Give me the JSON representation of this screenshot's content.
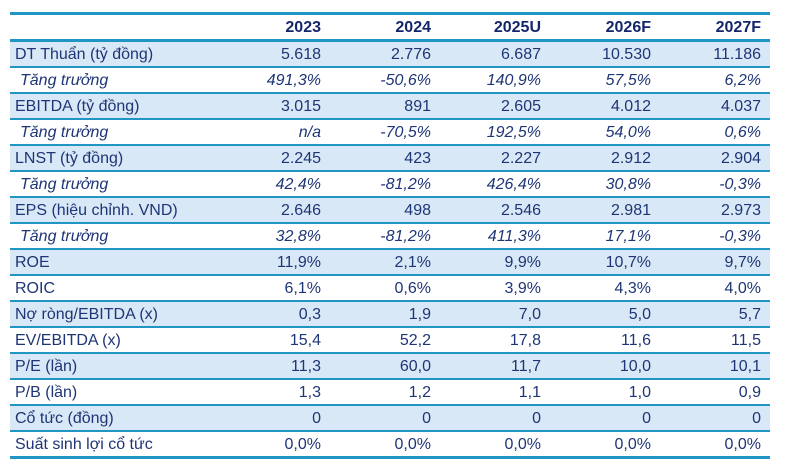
{
  "colors": {
    "rule_teal": "#2196c4",
    "row_shade_blue": "#d9e8f6",
    "text_navy": "#1e3576",
    "header_navy": "#14266b"
  },
  "chart_data": {
    "type": "table",
    "title": "",
    "corner_label": "",
    "columns": [
      "2023",
      "2024",
      "2025U",
      "2026F",
      "2027F"
    ],
    "rows": [
      {
        "label": "DT Thuẩn (tỷ đồng)",
        "italic": false,
        "values": [
          "5.618",
          "2.776",
          "6.687",
          "10.530",
          "11.186"
        ]
      },
      {
        "label": "Tăng trưởng",
        "italic": true,
        "values": [
          "491,3%",
          "-50,6%",
          "140,9%",
          "57,5%",
          "6,2%"
        ]
      },
      {
        "label": "EBITDA (tỷ đồng)",
        "italic": false,
        "values": [
          "3.015",
          "891",
          "2.605",
          "4.012",
          "4.037"
        ]
      },
      {
        "label": "Tăng trưởng",
        "italic": true,
        "values": [
          "n/a",
          "-70,5%",
          "192,5%",
          "54,0%",
          "0,6%"
        ]
      },
      {
        "label": "LNST (tỷ đồng)",
        "italic": false,
        "values": [
          "2.245",
          "423",
          "2.227",
          "2.912",
          "2.904"
        ]
      },
      {
        "label": "Tăng trưởng",
        "italic": true,
        "values": [
          "42,4%",
          "-81,2%",
          "426,4%",
          "30,8%",
          "-0,3%"
        ]
      },
      {
        "label": "EPS (hiệu chỉnh. VND)",
        "italic": false,
        "values": [
          "2.646",
          "498",
          "2.546",
          "2.981",
          "2.973"
        ]
      },
      {
        "label": "Tăng trưởng",
        "italic": true,
        "values": [
          "32,8%",
          "-81,2%",
          "411,3%",
          "17,1%",
          "-0,3%"
        ]
      },
      {
        "label": "ROE",
        "italic": false,
        "values": [
          "11,9%",
          "2,1%",
          "9,9%",
          "10,7%",
          "9,7%"
        ]
      },
      {
        "label": "ROIC",
        "italic": false,
        "values": [
          "6,1%",
          "0,6%",
          "3,9%",
          "4,3%",
          "4,0%"
        ]
      },
      {
        "label": "Nợ ròng/EBITDA (x)",
        "italic": false,
        "values": [
          "0,3",
          "1,9",
          "7,0",
          "5,0",
          "5,7"
        ]
      },
      {
        "label": "EV/EBITDA (x)",
        "italic": false,
        "values": [
          "15,4",
          "52,2",
          "17,8",
          "11,6",
          "11,5"
        ]
      },
      {
        "label": "P/E (lần)",
        "italic": false,
        "values": [
          "11,3",
          "60,0",
          "11,7",
          "10,0",
          "10,1"
        ]
      },
      {
        "label": "P/B (lần)",
        "italic": false,
        "values": [
          "1,3",
          "1,2",
          "1,1",
          "1,0",
          "0,9"
        ]
      },
      {
        "label": "Cổ tức (đồng)",
        "italic": false,
        "values": [
          "0",
          "0",
          "0",
          "0",
          "0"
        ]
      },
      {
        "label": "Suất sinh lợi cổ tức",
        "italic": false,
        "values": [
          "0,0%",
          "0,0%",
          "0,0%",
          "0,0%",
          "0,0%"
        ]
      }
    ]
  }
}
